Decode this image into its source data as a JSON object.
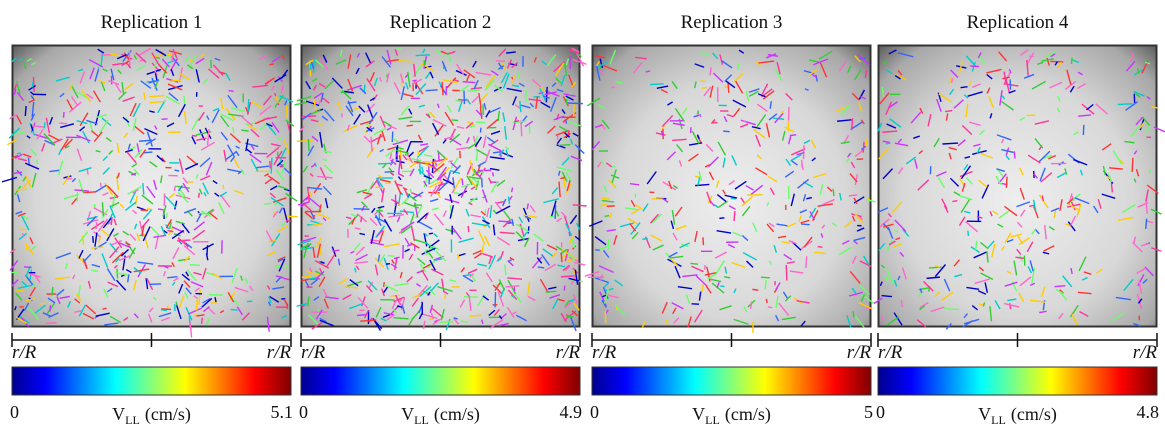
{
  "panels": [
    {
      "title": "Replication 1",
      "left_label": "r/R",
      "right_label": "r/R",
      "colorbar": {
        "min": 0,
        "max": 5.1,
        "symbol": "V",
        "subscript": "LL",
        "unit": "(cm/s)"
      }
    },
    {
      "title": "Replication 2",
      "left_label": "r/R",
      "right_label": "r/R",
      "colorbar": {
        "min": 0,
        "max": 4.9,
        "symbol": "V",
        "subscript": "LL",
        "unit": "(cm/s)"
      }
    },
    {
      "title": "Replication 3",
      "left_label": "r/R",
      "right_label": "r/R",
      "colorbar": {
        "min": 0,
        "max": 5,
        "symbol": "V",
        "subscript": "LL",
        "unit": "(cm/s)"
      }
    },
    {
      "title": "Replication 4",
      "left_label": "r/R",
      "right_label": "r/R",
      "colorbar": {
        "min": 0,
        "max": 4.8,
        "symbol": "V",
        "subscript": "LL",
        "unit": "(cm/s)"
      }
    }
  ]
}
